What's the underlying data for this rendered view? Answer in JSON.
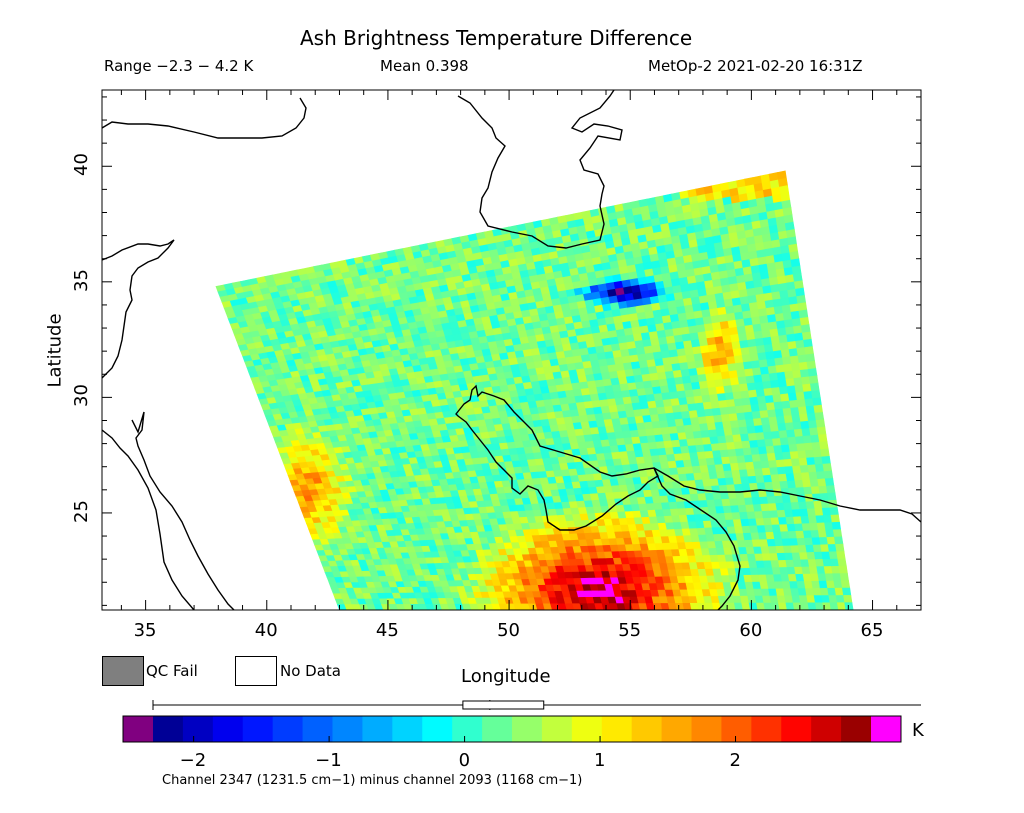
{
  "title": "Ash Brightness Temperature Difference",
  "stats": {
    "range": "Range −2.3 − 4.2 K",
    "mean": "Mean 0.398",
    "satellite_time": "MetOp-2 2021-02-20 16:31Z"
  },
  "axes": {
    "x_label": "Longitude",
    "y_label": "Latitude",
    "x_ticks": [
      "35",
      "40",
      "45",
      "50",
      "55",
      "60",
      "65"
    ],
    "y_ticks": [
      "25",
      "30",
      "35",
      "40"
    ],
    "lon_range": [
      33.2,
      67.0
    ],
    "lat_range": [
      20.8,
      43.3
    ]
  },
  "legend": {
    "qc_fail_label": "QC Fail",
    "no_data_label": "No Data",
    "qc_fail_color": "#7f7f7f",
    "no_data_color": "#ffffff"
  },
  "colorbar": {
    "ticks": [
      "−2",
      "−1",
      "0",
      "1",
      "2"
    ],
    "tick_values": [
      -2,
      -1,
      0,
      1,
      2
    ],
    "value_range": [
      -2.3,
      3.0
    ],
    "unit": "K",
    "under_color": "#800080",
    "over_color": "#ff00ff",
    "caption": "Channel 2347 (1231.5 cm−1) minus channel 2093 (1168 cm−1)",
    "boxplot": {
      "min": -2.3,
      "q1": 0.0,
      "median": 0.2,
      "q3": 0.6,
      "max": 4.2
    }
  },
  "swath": {
    "corners_lonlat": [
      [
        37.9,
        34.8
      ],
      [
        61.4,
        39.8
      ],
      [
        64.2,
        20.8
      ],
      [
        43.0,
        20.8
      ]
    ]
  }
}
